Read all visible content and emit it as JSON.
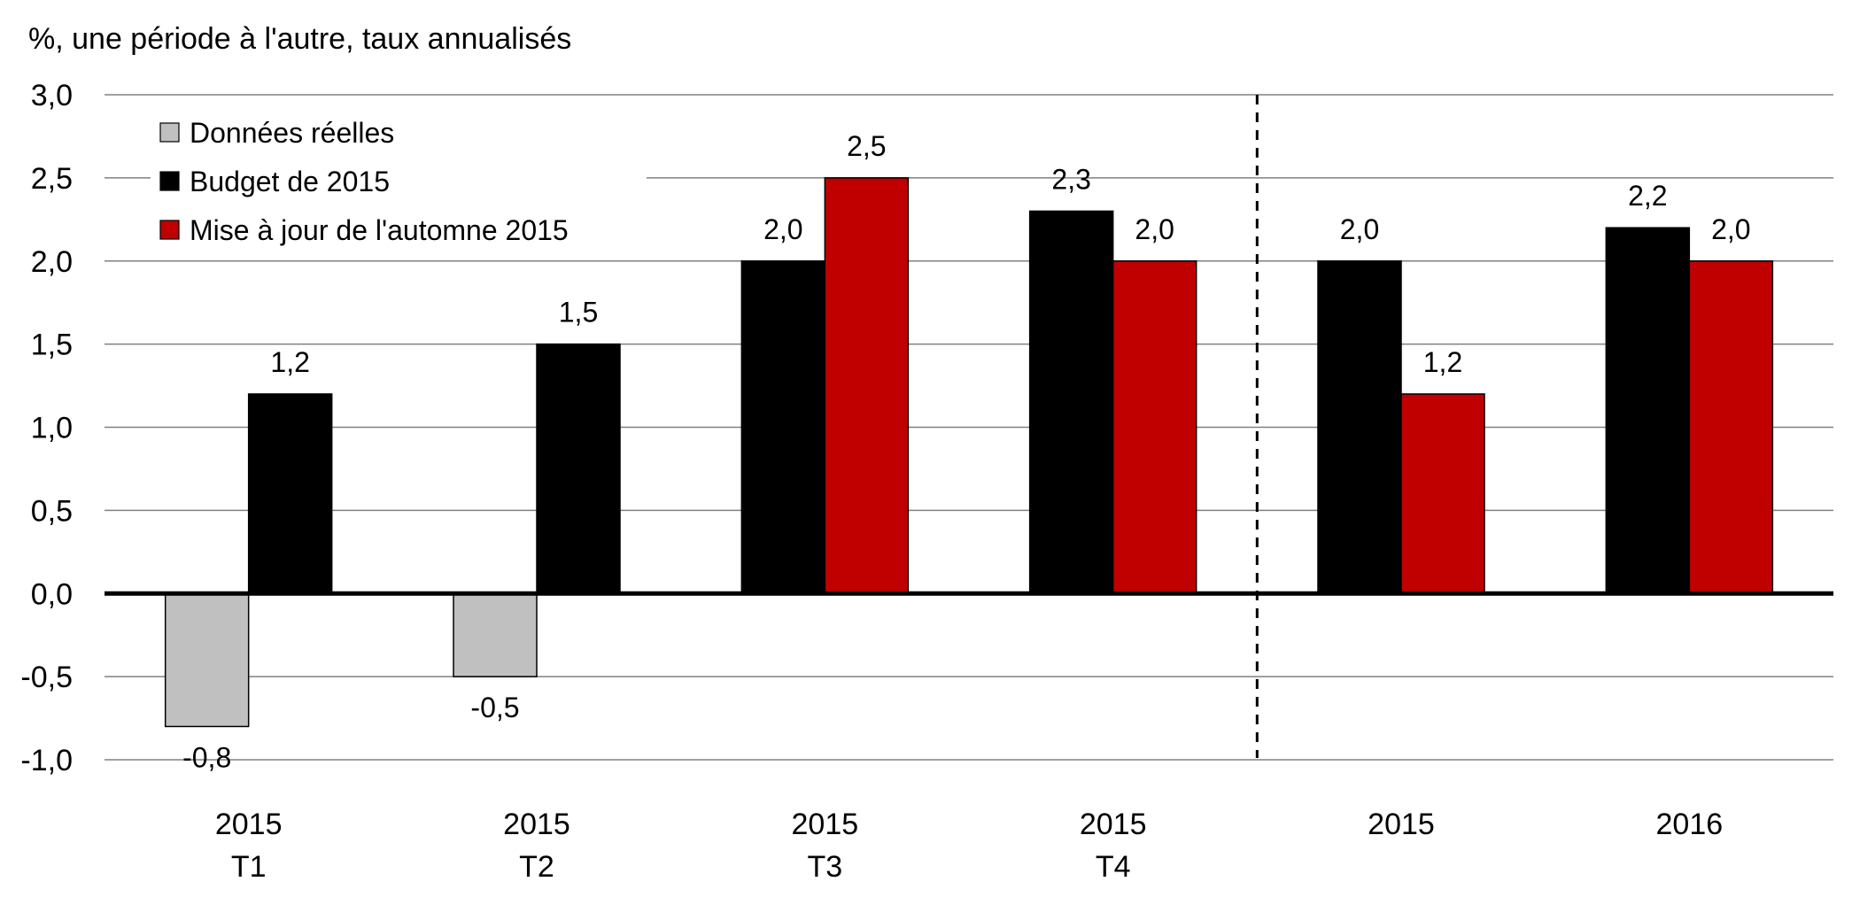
{
  "chart_data": {
    "type": "bar",
    "title": "",
    "ylabel": "%, une période à l'autre, taux annualisés",
    "xlabel": "",
    "ylim": [
      -1.0,
      3.0
    ],
    "yticks": [
      3.0,
      2.5,
      2.0,
      1.5,
      1.0,
      0.5,
      0.0,
      -0.5,
      -1.0
    ],
    "ytick_labels": [
      "3,0",
      "2,5",
      "2,0",
      "1,5",
      "1,0",
      "0,5",
      "0,0",
      "-0,5",
      "-1,0"
    ],
    "grid": true,
    "legend_position": "top-left",
    "categories": [
      {
        "line1": "2015",
        "line2": "T1"
      },
      {
        "line1": "2015",
        "line2": "T2"
      },
      {
        "line1": "2015",
        "line2": "T3"
      },
      {
        "line1": "2015",
        "line2": "T4"
      },
      {
        "line1": "2015",
        "line2": ""
      },
      {
        "line1": "2016",
        "line2": ""
      }
    ],
    "divider_after_category": 3,
    "series": [
      {
        "name": "Données réelles",
        "color": "#c0c0c0",
        "values": [
          -0.8,
          -0.5,
          null,
          null,
          null,
          null
        ],
        "labels": [
          "-0,8",
          "-0,5",
          "",
          "",
          "",
          ""
        ]
      },
      {
        "name": "Budget de 2015",
        "color": "#000000",
        "values": [
          1.2,
          1.5,
          2.0,
          2.3,
          2.0,
          2.2
        ],
        "labels": [
          "1,2",
          "1,5",
          "2,0",
          "2,3",
          "2,0",
          "2,2"
        ]
      },
      {
        "name": "Mise à jour de l'automne 2015",
        "color": "#c00000",
        "values": [
          null,
          null,
          2.5,
          2.0,
          1.2,
          2.0
        ],
        "labels": [
          "",
          "",
          "2,5",
          "2,0",
          "1,2",
          "2,0"
        ]
      }
    ]
  }
}
